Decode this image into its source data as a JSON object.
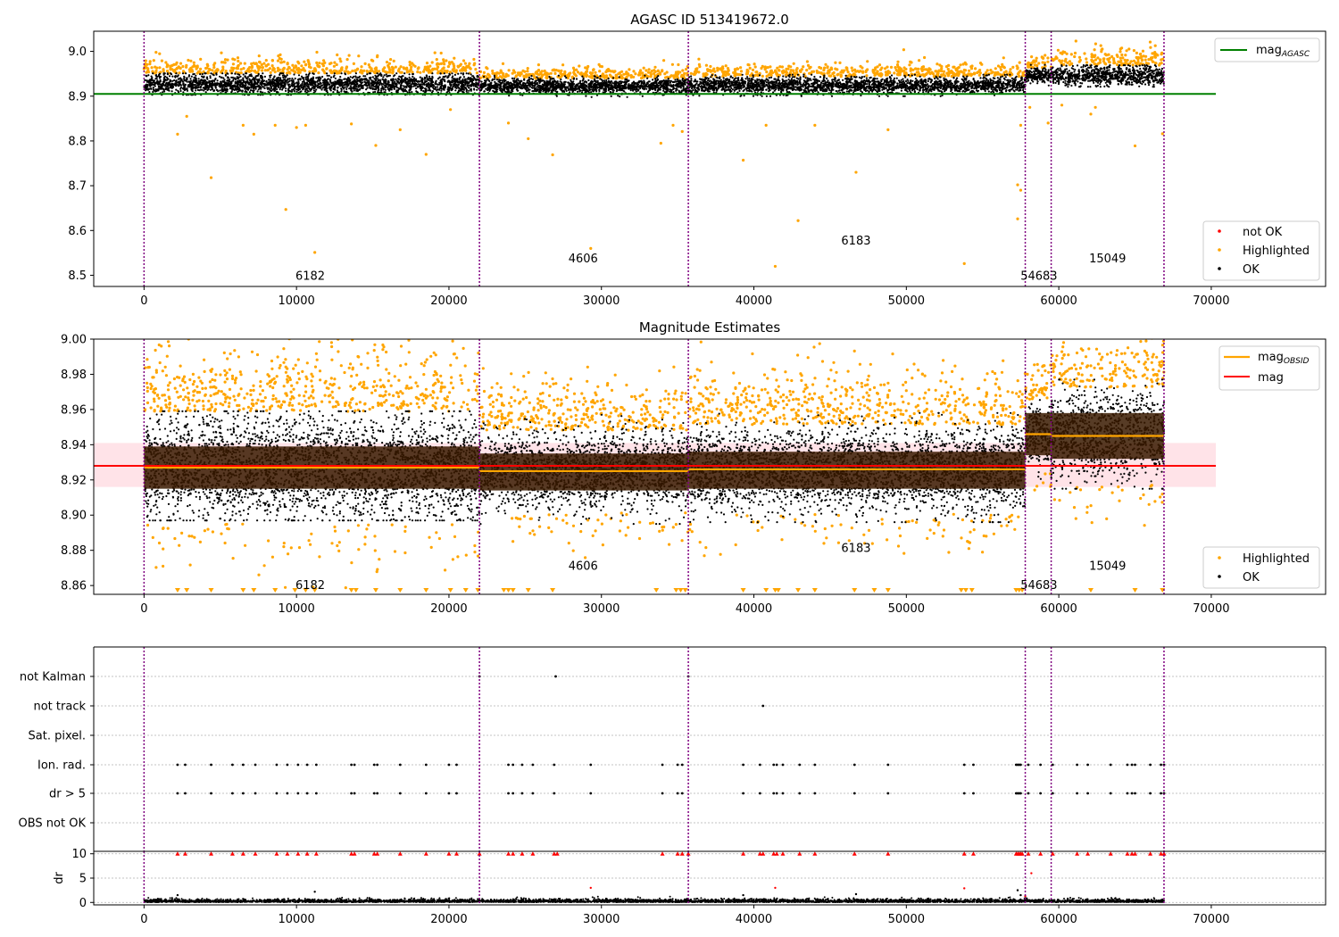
{
  "figure": {
    "title1": "AGASC ID 513419672.0",
    "title2": "Magnitude Estimates"
  },
  "colors": {
    "ok": "#000000",
    "highlighted": "#ffa500",
    "not_ok": "#ff0000",
    "mag_agasc": "#008000",
    "mag": "#ff0000",
    "mag_obsid": "#ffa500",
    "obs_boundary": "#800080",
    "band": "#ffc0cb",
    "obs_band": "#3a1a00"
  },
  "chart_data": [
    {
      "type": "scatter",
      "title": "AGASC ID 513419672.0",
      "xlim": [
        -3300,
        77500
      ],
      "ylim": [
        8.475,
        9.045
      ],
      "xticks": [
        "0",
        "10000",
        "20000",
        "30000",
        "40000",
        "50000",
        "60000",
        "70000"
      ],
      "xtick_values": [
        0,
        10000,
        20000,
        30000,
        40000,
        50000,
        60000,
        70000
      ],
      "yticks": [
        "8.5",
        "8.6",
        "8.7",
        "8.8",
        "8.9",
        "9.0"
      ],
      "ytick_values": [
        8.5,
        8.6,
        8.7,
        8.8,
        8.9,
        9.0
      ],
      "mag_agasc": 8.905,
      "mag_agasc_xrange": [
        -3300,
        70300
      ],
      "legend_upper": {
        "position": "upper right",
        "entries": [
          "mag",
          "AGASC"
        ]
      },
      "legend_lower": {
        "position": "lower right",
        "entries": [
          "not OK",
          "Highlighted",
          "OK"
        ]
      },
      "obs_boundaries": [
        0,
        22000,
        35700,
        57800,
        59500,
        66900
      ],
      "obs_labels": [
        {
          "text": "6182",
          "x": 10900,
          "y": 8.5
        },
        {
          "text": "4606",
          "x": 28800,
          "y": 8.539
        },
        {
          "text": "6183",
          "x": 46700,
          "y": 8.579
        },
        {
          "text": "54683",
          "x": 58700,
          "y": 8.5
        },
        {
          "text": "15049",
          "x": 63200,
          "y": 8.539
        }
      ],
      "segments": [
        {
          "x": [
            0,
            22000
          ],
          "center": 8.927,
          "spread": 0.011
        },
        {
          "x": [
            22000,
            35700
          ],
          "center": 8.922,
          "spread": 0.008
        },
        {
          "x": [
            35700,
            57800
          ],
          "center": 8.924,
          "spread": 0.009
        },
        {
          "x": [
            57800,
            59500
          ],
          "center": 8.946,
          "spread": 0.008
        },
        {
          "x": [
            59500,
            66900
          ],
          "center": 8.945,
          "spread": 0.011
        }
      ],
      "outliers": [
        {
          "x": 2200,
          "y": 8.815
        },
        {
          "x": 2800,
          "y": 8.855
        },
        {
          "x": 4400,
          "y": 8.718
        },
        {
          "x": 6500,
          "y": 8.835
        },
        {
          "x": 7200,
          "y": 8.815
        },
        {
          "x": 8600,
          "y": 8.835
        },
        {
          "x": 9300,
          "y": 8.647
        },
        {
          "x": 10000,
          "y": 8.83
        },
        {
          "x": 10600,
          "y": 8.835
        },
        {
          "x": 11200,
          "y": 8.551
        },
        {
          "x": 13600,
          "y": 8.838
        },
        {
          "x": 15200,
          "y": 8.79
        },
        {
          "x": 16800,
          "y": 8.825
        },
        {
          "x": 18500,
          "y": 8.77
        },
        {
          "x": 20100,
          "y": 8.87
        },
        {
          "x": 23900,
          "y": 8.84
        },
        {
          "x": 25200,
          "y": 8.805
        },
        {
          "x": 26800,
          "y": 8.769
        },
        {
          "x": 29300,
          "y": 8.56
        },
        {
          "x": 33900,
          "y": 8.795
        },
        {
          "x": 34700,
          "y": 8.835
        },
        {
          "x": 35300,
          "y": 8.821
        },
        {
          "x": 39300,
          "y": 8.757
        },
        {
          "x": 40800,
          "y": 8.835
        },
        {
          "x": 41400,
          "y": 8.52
        },
        {
          "x": 42900,
          "y": 8.622
        },
        {
          "x": 44000,
          "y": 8.835
        },
        {
          "x": 46700,
          "y": 8.73
        },
        {
          "x": 48800,
          "y": 8.825
        },
        {
          "x": 53800,
          "y": 8.526
        },
        {
          "x": 57300,
          "y": 8.626
        },
        {
          "x": 57300,
          "y": 8.702
        },
        {
          "x": 57500,
          "y": 8.69
        },
        {
          "x": 57500,
          "y": 8.835
        },
        {
          "x": 58100,
          "y": 8.875
        },
        {
          "x": 59300,
          "y": 8.84
        },
        {
          "x": 60200,
          "y": 8.88
        },
        {
          "x": 62100,
          "y": 8.86
        },
        {
          "x": 62400,
          "y": 8.875
        },
        {
          "x": 65000,
          "y": 8.789
        },
        {
          "x": 66800,
          "y": 8.816
        }
      ]
    },
    {
      "type": "scatter",
      "title": "Magnitude Estimates",
      "xlim": [
        -3300,
        77500
      ],
      "ylim": [
        8.855,
        9.0
      ],
      "xticks": [
        "0",
        "10000",
        "20000",
        "30000",
        "40000",
        "50000",
        "60000",
        "70000"
      ],
      "xtick_values": [
        0,
        10000,
        20000,
        30000,
        40000,
        50000,
        60000,
        70000
      ],
      "yticks": [
        "8.86",
        "8.88",
        "8.90",
        "8.92",
        "8.94",
        "8.96",
        "8.98",
        "9.00"
      ],
      "ytick_values": [
        8.86,
        8.88,
        8.9,
        8.92,
        8.94,
        8.96,
        8.98,
        9.0
      ],
      "mag": 8.928,
      "mag_band": [
        8.916,
        8.941
      ],
      "mag_xrange": [
        -3300,
        70300
      ],
      "mag_obsid": [
        {
          "x": [
            0,
            22000
          ],
          "value": 8.927,
          "band": [
            8.915,
            8.939
          ]
        },
        {
          "x": [
            22000,
            35700
          ],
          "value": 8.925,
          "band": [
            8.914,
            8.935
          ]
        },
        {
          "x": [
            35700,
            57800
          ],
          "value": 8.926,
          "band": [
            8.915,
            8.936
          ]
        },
        {
          "x": [
            57800,
            59500
          ],
          "value": 8.946,
          "band": [
            8.934,
            8.958
          ]
        },
        {
          "x": [
            59500,
            66900
          ],
          "value": 8.945,
          "band": [
            8.932,
            8.958
          ]
        }
      ],
      "legend_upper": {
        "position": "upper right",
        "entries": [
          "mag",
          "OBSID",
          "mag"
        ]
      },
      "legend_lower": {
        "position": "lower right",
        "entries": [
          "Highlighted",
          "OK"
        ]
      },
      "obs_boundaries": [
        0,
        22000,
        35700,
        57800,
        59500,
        66900
      ],
      "obs_labels": [
        {
          "text": "6182",
          "x": 10900,
          "y": 8.8605
        },
        {
          "text": "4606",
          "x": 28800,
          "y": 8.8715
        },
        {
          "text": "6183",
          "x": 46700,
          "y": 8.8815
        },
        {
          "text": "54683",
          "x": 58700,
          "y": 8.8605
        },
        {
          "text": "15049",
          "x": 63200,
          "y": 8.8715
        }
      ],
      "clipped_low_markers": [
        2200,
        2800,
        4400,
        6500,
        7200,
        8600,
        9900,
        10600,
        11200,
        13600,
        13900,
        15200,
        16800,
        18500,
        20100,
        21100,
        21900,
        23600,
        23900,
        24200,
        25200,
        26800,
        33600,
        34900,
        35200,
        35500,
        39300,
        40800,
        41400,
        41600,
        42900,
        44000,
        46600,
        47900,
        48800,
        53600,
        53900,
        54300,
        57200,
        57400,
        57600,
        62100,
        65000,
        66800
      ]
    },
    {
      "type": "scatter",
      "title": "",
      "xlim": [
        -3300,
        77500
      ],
      "categories": [
        "not Kalman",
        "not track",
        "Sat. pixel.",
        "Ion. rad.",
        "dr > 5",
        "OBS not OK"
      ],
      "flag_points": {
        "not Kalman": [
          22000,
          27000,
          35700
        ],
        "not track": [
          40600
        ],
        "Sat. pixel.": [],
        "Ion. rad.": [
          2200,
          2700,
          4400,
          5800,
          6500,
          7300,
          8700,
          9400,
          10100,
          10700,
          11300,
          13600,
          13800,
          15100,
          15300,
          16800,
          18500,
          20000,
          20500,
          23900,
          24200,
          24800,
          25500,
          26900,
          29300,
          34000,
          35000,
          35300,
          39300,
          40400,
          41300,
          41500,
          41900,
          43000,
          44000,
          46600,
          48800,
          53800,
          54400,
          57200,
          57300,
          57400,
          57500,
          58000,
          58800,
          59600,
          61200,
          61900,
          63400,
          64500,
          64800,
          65000,
          66000,
          66700,
          66900
        ],
        "dr > 5": [
          2200,
          2700,
          4400,
          5800,
          6500,
          7300,
          8700,
          9400,
          10100,
          10700,
          11300,
          13600,
          13800,
          15100,
          15300,
          16800,
          18500,
          20000,
          20500,
          23900,
          24200,
          24800,
          25500,
          26900,
          29300,
          34000,
          35000,
          35300,
          39300,
          40400,
          41300,
          41500,
          41900,
          43000,
          44000,
          46600,
          48800,
          53800,
          54400,
          57200,
          57300,
          57400,
          57500,
          58000,
          58800,
          59600,
          61200,
          61900,
          63400,
          64500,
          64800,
          65000,
          66000,
          66700,
          66900
        ],
        "OBS not OK": []
      },
      "obs_boundaries": [
        0,
        22000,
        35700,
        57800,
        59500,
        66900
      ]
    },
    {
      "type": "scatter",
      "title": "",
      "ylabel": "dr",
      "xlim": [
        -3300,
        77500
      ],
      "ylim": [
        -0.5,
        10.5
      ],
      "xticks": [
        "0",
        "10000",
        "20000",
        "30000",
        "40000",
        "50000",
        "60000",
        "70000"
      ],
      "xtick_values": [
        0,
        10000,
        20000,
        30000,
        40000,
        50000,
        60000,
        70000
      ],
      "yticks": [
        "0",
        "5",
        "10"
      ],
      "ytick_values": [
        0,
        5,
        10
      ],
      "clip_value": 10,
      "obs_boundaries": [
        0,
        22000,
        35700,
        57800,
        59500,
        66900
      ],
      "clipped_markers": [
        2200,
        2700,
        4400,
        5800,
        6500,
        7300,
        8700,
        9400,
        10100,
        10700,
        11300,
        13600,
        13800,
        15100,
        15300,
        16800,
        18500,
        20000,
        20500,
        22000,
        23900,
        24200,
        24800,
        25500,
        26900,
        27100,
        34000,
        35000,
        35300,
        35700,
        39300,
        40400,
        40600,
        41300,
        41500,
        41900,
        43000,
        44000,
        46600,
        48800,
        53800,
        54400,
        57200,
        57300,
        57400,
        57500,
        57600,
        58000,
        58800,
        59600,
        61200,
        61900,
        63400,
        64500,
        64800,
        65000,
        66000,
        66700,
        66900
      ],
      "red_points": [
        {
          "x": 29300,
          "y": 3.0
        },
        {
          "x": 41400,
          "y": 3.0
        },
        {
          "x": 53800,
          "y": 2.9
        },
        {
          "x": 58200,
          "y": 6.0
        },
        {
          "x": 57800,
          "y": 1.3
        }
      ],
      "black_points": [
        {
          "x": 2200,
          "y": 1.5
        },
        {
          "x": 11200,
          "y": 2.2
        },
        {
          "x": 39300,
          "y": 1.5
        },
        {
          "x": 46700,
          "y": 1.7
        },
        {
          "x": 57300,
          "y": 2.5
        },
        {
          "x": 57500,
          "y": 1.5
        }
      ]
    }
  ]
}
